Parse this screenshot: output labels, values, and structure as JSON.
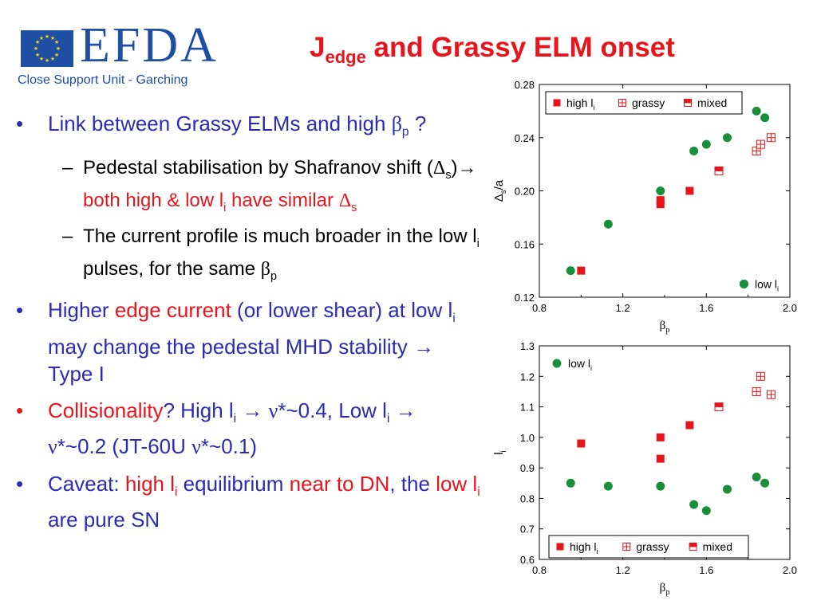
{
  "logo": {
    "brand": "EFDA",
    "subtitle": "Close Support Unit - Garching"
  },
  "title": {
    "main": "J",
    "sub": "edge",
    "rest": " and Grassy ELM onset"
  },
  "bullets": {
    "b1": {
      "text": "Link between Grassy ELMs and high ",
      "beta": "β",
      "beta_sub": "p",
      "tail": " ?"
    },
    "b1a": {
      "t1": "Pedestal stabilisation by Shafranov shift (",
      "delta": "Δ",
      "delta_sub": "s",
      "t2": ")",
      "arrow": "→",
      "red1": " both high & low l",
      "red1_sub": "i",
      "red2": " have similar ",
      "delta2": "Δ",
      "delta2_sub": "s"
    },
    "b1b": {
      "t1": "The current profile is much broader in the low l",
      "t1_sub": "i",
      "t2": " pulses, for the same ",
      "beta": "β",
      "beta_sub": "p"
    },
    "b2": {
      "t1": "Higher ",
      "red": "edge current",
      "t2": " (or lower shear) at low l",
      "t2_sub": "i",
      "t3": " may change the pedestal MHD stability ",
      "arrow": "→",
      "t4": " Type I"
    },
    "b3": {
      "red": "Collisionality",
      "t1": "? High l",
      "t1_sub": "i",
      "arrow1": " → ",
      "nu1": "ν",
      "t2": "*~0.4, Low l",
      "t2_sub": "i",
      "arrow2": " → ",
      "nu2": "ν",
      "t3": "*~0.2 (JT-60U ",
      "nu3": "ν",
      "t4": "*~0.1)"
    },
    "b4": {
      "t1": "Caveat: ",
      "red1": "high l",
      "red1_sub": "i",
      "t2": " equilibrium ",
      "red2": "near to DN",
      "t3": ", the ",
      "red3": "low l",
      "red3_sub": "i",
      "t4": " are pure SN"
    }
  },
  "chart_data": [
    {
      "type": "scatter",
      "xlabel": "βp",
      "ylabel": "Δs/a",
      "xlim": [
        0.8,
        2.0
      ],
      "ylim": [
        0.12,
        0.28
      ],
      "xticks": [
        "0.8",
        "1.2",
        "1.6",
        "2.0"
      ],
      "yticks": [
        "0.12",
        "0.16",
        "0.20",
        "0.24",
        "0.28"
      ],
      "legend": [
        "high li",
        "grassy",
        "mixed"
      ],
      "annotation": "low li",
      "colors": {
        "low": "#1a8f3a",
        "high": "#e8141b"
      },
      "series": [
        {
          "name": "low li",
          "marker": "circle",
          "points": [
            [
              0.95,
              0.14
            ],
            [
              1.13,
              0.175
            ],
            [
              1.38,
              0.2
            ],
            [
              1.54,
              0.23
            ],
            [
              1.6,
              0.235
            ],
            [
              1.7,
              0.24
            ],
            [
              1.84,
              0.26
            ],
            [
              1.88,
              0.255
            ],
            [
              1.78,
              0.13
            ]
          ]
        },
        {
          "name": "high li",
          "marker": "square",
          "points": [
            [
              1.0,
              0.14
            ],
            [
              1.38,
              0.19
            ],
            [
              1.38,
              0.193
            ],
            [
              1.52,
              0.2
            ]
          ]
        },
        {
          "name": "grassy",
          "marker": "gridsquare",
          "points": [
            [
              1.84,
              0.23
            ],
            [
              1.86,
              0.235
            ],
            [
              1.91,
              0.24
            ]
          ]
        },
        {
          "name": "mixed",
          "marker": "halfsquare",
          "points": [
            [
              1.66,
              0.215
            ]
          ]
        }
      ]
    },
    {
      "type": "scatter",
      "xlabel": "βp",
      "ylabel": "li",
      "xlim": [
        0.8,
        2.0
      ],
      "ylim": [
        0.6,
        1.3
      ],
      "xticks": [
        "0.8",
        "1.2",
        "1.6",
        "2.0"
      ],
      "yticks": [
        "0.6",
        "0.7",
        "0.8",
        "0.9",
        "1.0",
        "1.1",
        "1.2",
        "1.3"
      ],
      "legend": [
        "high li",
        "grassy",
        "mixed"
      ],
      "legend_top": [
        "low li"
      ],
      "colors": {
        "low": "#1a8f3a",
        "high": "#e8141b"
      },
      "series": [
        {
          "name": "low li",
          "marker": "circle",
          "points": [
            [
              0.95,
              0.85
            ],
            [
              1.13,
              0.84
            ],
            [
              1.38,
              0.84
            ],
            [
              1.54,
              0.78
            ],
            [
              1.6,
              0.76
            ],
            [
              1.7,
              0.83
            ],
            [
              1.84,
              0.87
            ],
            [
              1.88,
              0.85
            ]
          ]
        },
        {
          "name": "high li",
          "marker": "square",
          "points": [
            [
              1.0,
              0.98
            ],
            [
              1.38,
              1.0
            ],
            [
              1.38,
              0.93
            ],
            [
              1.52,
              1.04
            ]
          ]
        },
        {
          "name": "grassy",
          "marker": "gridsquare",
          "points": [
            [
              1.84,
              1.15
            ],
            [
              1.86,
              1.2
            ],
            [
              1.91,
              1.14
            ]
          ]
        },
        {
          "name": "mixed",
          "marker": "halfsquare",
          "points": [
            [
              1.66,
              1.1
            ]
          ]
        }
      ]
    }
  ]
}
